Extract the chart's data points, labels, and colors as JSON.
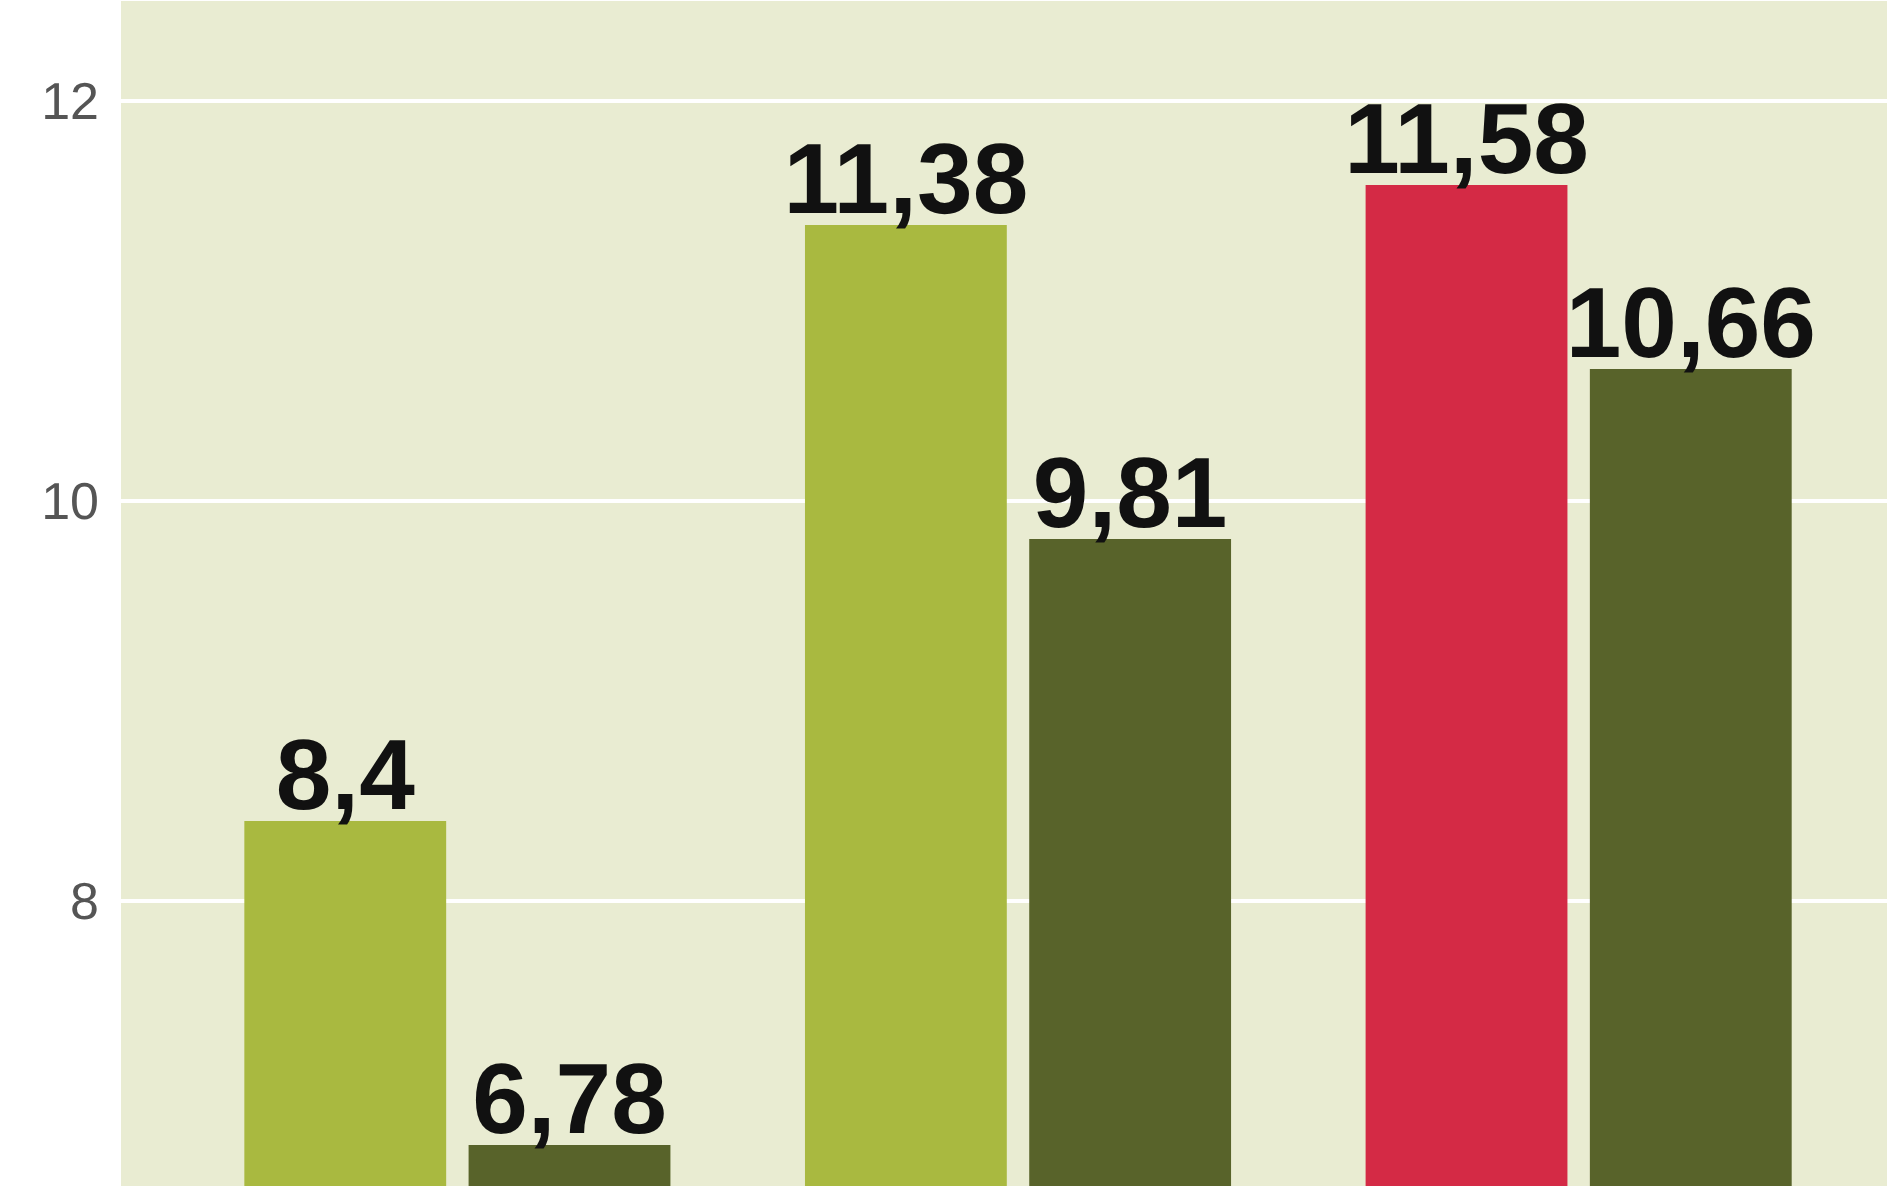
{
  "chart_data": {
    "type": "bar",
    "categories": [
      null,
      null,
      null
    ],
    "series": [
      {
        "color": "#a9b940",
        "colors": [
          "#a9b940",
          "#a9b940",
          "#d42a45"
        ],
        "values": [
          8.4,
          11.38,
          11.58
        ],
        "value_labels": [
          "8,4",
          "11,38",
          "11,58"
        ]
      },
      {
        "color": "#58632a",
        "values": [
          6.78,
          9.81,
          10.66
        ],
        "value_labels": [
          "6,78",
          "9,81",
          "10,66"
        ]
      }
    ],
    "ylim": [
      6.57,
      12.5
    ],
    "yticks": [
      8,
      10,
      12
    ],
    "grid": "y"
  }
}
